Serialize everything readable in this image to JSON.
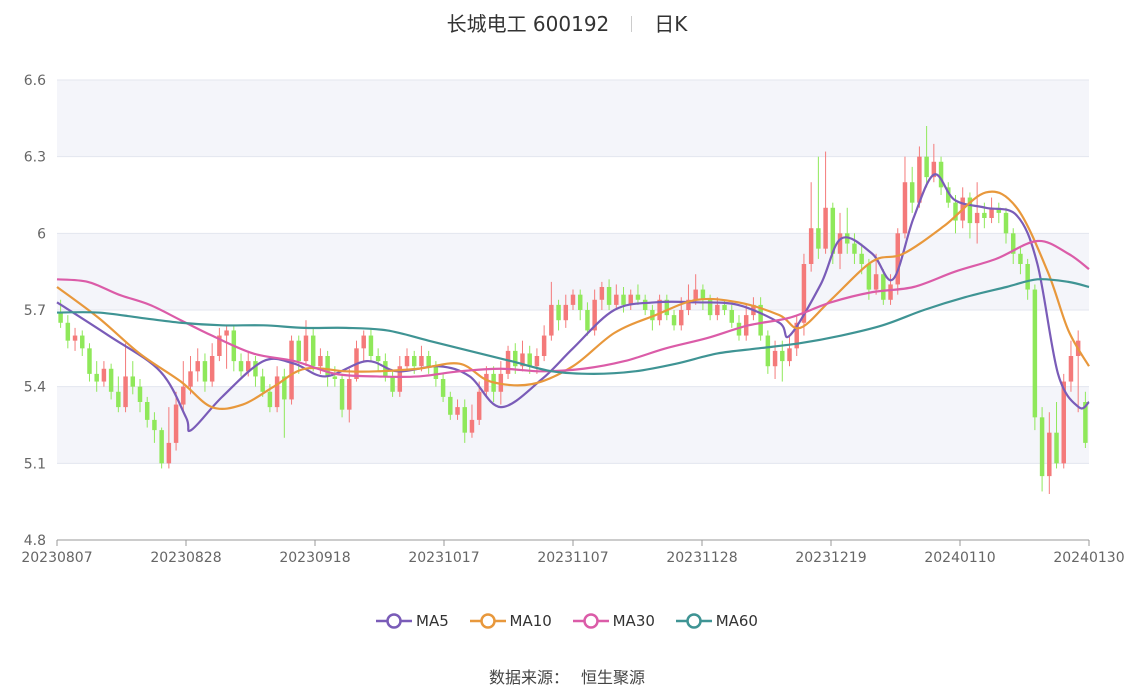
{
  "header": {
    "name": "长城电工 600192",
    "period": "日K"
  },
  "source": {
    "label": "数据来源：",
    "value": "恒生聚源"
  },
  "colors": {
    "up": "#f47a7a",
    "down": "#8fe85a",
    "ma5": "#7a5cb8",
    "ma10": "#e8983c",
    "ma30": "#db5ca8",
    "ma60": "#3f9494",
    "band": "#f4f5fa",
    "grid": "#e3e6ef"
  },
  "chart_data": {
    "type": "candlestick",
    "x_ticks": [
      "20230807",
      "20230828",
      "20230918",
      "20231017",
      "20231107",
      "20231128",
      "20231219",
      "20240110",
      "20240130"
    ],
    "y_ticks": [
      "4.8",
      "5.1",
      "5.4",
      "5.7",
      "6",
      "6.3",
      "6.6"
    ],
    "ylim": [
      4.8,
      6.6
    ],
    "legend": [
      "MA5",
      "MA10",
      "MA30",
      "MA60"
    ],
    "legend_position": "bottom",
    "candles": [
      [
        5.69,
        5.65,
        5.74,
        5.63
      ],
      [
        5.65,
        5.58,
        5.68,
        5.55
      ],
      [
        5.58,
        5.6,
        5.63,
        5.54
      ],
      [
        5.6,
        5.55,
        5.62,
        5.52
      ],
      [
        5.55,
        5.45,
        5.57,
        5.42
      ],
      [
        5.45,
        5.42,
        5.5,
        5.38
      ],
      [
        5.42,
        5.47,
        5.5,
        5.4
      ],
      [
        5.47,
        5.38,
        5.49,
        5.35
      ],
      [
        5.38,
        5.32,
        5.44,
        5.3
      ],
      [
        5.32,
        5.44,
        5.57,
        5.3
      ],
      [
        5.44,
        5.4,
        5.5,
        5.37
      ],
      [
        5.4,
        5.34,
        5.43,
        5.3
      ],
      [
        5.34,
        5.27,
        5.36,
        5.24
      ],
      [
        5.27,
        5.23,
        5.3,
        5.18
      ],
      [
        5.23,
        5.1,
        5.24,
        5.08
      ],
      [
        5.1,
        5.18,
        5.32,
        5.08
      ],
      [
        5.18,
        5.33,
        5.38,
        5.15
      ],
      [
        5.33,
        5.4,
        5.5,
        5.3
      ],
      [
        5.4,
        5.46,
        5.52,
        5.37
      ],
      [
        5.46,
        5.5,
        5.55,
        5.42
      ],
      [
        5.5,
        5.42,
        5.53,
        5.38
      ],
      [
        5.42,
        5.52,
        5.57,
        5.4
      ],
      [
        5.52,
        5.6,
        5.63,
        5.5
      ],
      [
        5.6,
        5.62,
        5.64,
        5.47
      ],
      [
        5.62,
        5.5,
        5.64,
        5.46
      ],
      [
        5.5,
        5.46,
        5.53,
        5.44
      ],
      [
        5.46,
        5.5,
        5.54,
        5.44
      ],
      [
        5.5,
        5.44,
        5.52,
        5.4
      ],
      [
        5.44,
        5.38,
        5.47,
        5.36
      ],
      [
        5.38,
        5.32,
        5.41,
        5.3
      ],
      [
        5.32,
        5.44,
        5.48,
        5.3
      ],
      [
        5.44,
        5.35,
        5.47,
        5.2
      ],
      [
        5.35,
        5.58,
        5.6,
        5.33
      ],
      [
        5.58,
        5.5,
        5.6,
        5.45
      ],
      [
        5.5,
        5.6,
        5.66,
        5.48
      ],
      [
        5.6,
        5.48,
        5.63,
        5.46
      ],
      [
        5.48,
        5.52,
        5.55,
        5.45
      ],
      [
        5.52,
        5.44,
        5.54,
        5.4
      ],
      [
        5.44,
        5.43,
        5.48,
        5.4
      ],
      [
        5.43,
        5.31,
        5.45,
        5.28
      ],
      [
        5.31,
        5.43,
        5.47,
        5.26
      ],
      [
        5.43,
        5.55,
        5.58,
        5.42
      ],
      [
        5.55,
        5.6,
        5.62,
        5.5
      ],
      [
        5.6,
        5.52,
        5.63,
        5.5
      ],
      [
        5.52,
        5.5,
        5.55,
        5.46
      ],
      [
        5.5,
        5.44,
        5.53,
        5.42
      ],
      [
        5.44,
        5.38,
        5.46,
        5.36
      ],
      [
        5.38,
        5.48,
        5.52,
        5.36
      ],
      [
        5.48,
        5.52,
        5.55,
        5.46
      ],
      [
        5.52,
        5.48,
        5.54,
        5.45
      ],
      [
        5.48,
        5.52,
        5.56,
        5.46
      ],
      [
        5.52,
        5.48,
        5.54,
        5.45
      ],
      [
        5.48,
        5.43,
        5.5,
        5.4
      ],
      [
        5.43,
        5.36,
        5.45,
        5.34
      ],
      [
        5.36,
        5.29,
        5.38,
        5.27
      ],
      [
        5.29,
        5.32,
        5.35,
        5.27
      ],
      [
        5.32,
        5.22,
        5.35,
        5.18
      ],
      [
        5.22,
        5.27,
        5.33,
        5.2
      ],
      [
        5.27,
        5.38,
        5.42,
        5.25
      ],
      [
        5.38,
        5.45,
        5.48,
        5.36
      ],
      [
        5.45,
        5.38,
        5.48,
        5.34
      ],
      [
        5.38,
        5.45,
        5.5,
        5.33
      ],
      [
        5.45,
        5.54,
        5.56,
        5.43
      ],
      [
        5.54,
        5.48,
        5.57,
        5.45
      ],
      [
        5.48,
        5.53,
        5.58,
        5.46
      ],
      [
        5.53,
        5.48,
        5.56,
        5.45
      ],
      [
        5.48,
        5.52,
        5.55,
        5.45
      ],
      [
        5.52,
        5.6,
        5.64,
        5.5
      ],
      [
        5.6,
        5.72,
        5.81,
        5.58
      ],
      [
        5.72,
        5.66,
        5.74,
        5.62
      ],
      [
        5.66,
        5.72,
        5.76,
        5.63
      ],
      [
        5.72,
        5.76,
        5.78,
        5.7
      ],
      [
        5.76,
        5.7,
        5.78,
        5.66
      ],
      [
        5.7,
        5.62,
        5.73,
        5.6
      ],
      [
        5.62,
        5.74,
        5.78,
        5.6
      ],
      [
        5.74,
        5.79,
        5.81,
        5.7
      ],
      [
        5.79,
        5.72,
        5.82,
        5.7
      ],
      [
        5.72,
        5.76,
        5.8,
        5.7
      ],
      [
        5.76,
        5.72,
        5.79,
        5.69
      ],
      [
        5.72,
        5.76,
        5.78,
        5.7
      ],
      [
        5.76,
        5.74,
        5.8,
        5.72
      ],
      [
        5.74,
        5.7,
        5.76,
        5.68
      ],
      [
        5.7,
        5.66,
        5.72,
        5.62
      ],
      [
        5.66,
        5.74,
        5.76,
        5.64
      ],
      [
        5.74,
        5.68,
        5.76,
        5.66
      ],
      [
        5.68,
        5.64,
        5.7,
        5.62
      ],
      [
        5.64,
        5.7,
        5.75,
        5.62
      ],
      [
        5.7,
        5.74,
        5.8,
        5.68
      ],
      [
        5.74,
        5.78,
        5.84,
        5.72
      ],
      [
        5.78,
        5.74,
        5.8,
        5.7
      ],
      [
        5.74,
        5.68,
        5.76,
        5.66
      ],
      [
        5.68,
        5.72,
        5.75,
        5.66
      ],
      [
        5.72,
        5.7,
        5.74,
        5.68
      ],
      [
        5.7,
        5.65,
        5.72,
        5.63
      ],
      [
        5.65,
        5.6,
        5.68,
        5.58
      ],
      [
        5.6,
        5.68,
        5.72,
        5.58
      ],
      [
        5.68,
        5.72,
        5.75,
        5.66
      ],
      [
        5.72,
        5.6,
        5.75,
        5.58
      ],
      [
        5.6,
        5.48,
        5.62,
        5.45
      ],
      [
        5.48,
        5.54,
        5.58,
        5.43
      ],
      [
        5.54,
        5.5,
        5.58,
        5.42
      ],
      [
        5.5,
        5.55,
        5.6,
        5.48
      ],
      [
        5.55,
        5.65,
        5.68,
        5.52
      ],
      [
        5.65,
        5.88,
        5.92,
        5.6
      ],
      [
        5.88,
        6.02,
        6.2,
        5.85
      ],
      [
        6.02,
        5.94,
        6.3,
        5.9
      ],
      [
        5.94,
        6.1,
        6.32,
        5.92
      ],
      [
        6.1,
        5.92,
        6.12,
        5.88
      ],
      [
        5.92,
        6.0,
        6.08,
        5.86
      ],
      [
        6.0,
        5.96,
        6.1,
        5.92
      ],
      [
        5.96,
        5.92,
        6.0,
        5.88
      ],
      [
        5.92,
        5.88,
        5.96,
        5.84
      ],
      [
        5.88,
        5.78,
        5.9,
        5.74
      ],
      [
        5.78,
        5.84,
        5.92,
        5.76
      ],
      [
        5.84,
        5.74,
        5.86,
        5.72
      ],
      [
        5.74,
        5.8,
        5.84,
        5.72
      ],
      [
        5.8,
        6.0,
        6.02,
        5.76
      ],
      [
        6.0,
        6.2,
        6.3,
        5.98
      ],
      [
        6.2,
        6.12,
        6.26,
        6.08
      ],
      [
        6.12,
        6.3,
        6.34,
        6.1
      ],
      [
        6.3,
        6.22,
        6.42,
        6.18
      ],
      [
        6.22,
        6.28,
        6.35,
        6.2
      ],
      [
        6.28,
        6.18,
        6.3,
        6.15
      ],
      [
        6.18,
        6.12,
        6.2,
        6.1
      ],
      [
        6.12,
        6.05,
        6.15,
        6.0
      ],
      [
        6.05,
        6.14,
        6.18,
        6.02
      ],
      [
        6.14,
        6.04,
        6.16,
        5.98
      ],
      [
        6.04,
        6.08,
        6.2,
        5.96
      ],
      [
        6.08,
        6.06,
        6.12,
        6.02
      ],
      [
        6.06,
        6.1,
        6.14,
        6.04
      ],
      [
        6.1,
        6.08,
        6.12,
        6.04
      ],
      [
        6.08,
        6.0,
        6.1,
        5.96
      ],
      [
        6.0,
        5.92,
        6.02,
        5.88
      ],
      [
        5.92,
        5.88,
        5.95,
        5.84
      ],
      [
        5.88,
        5.78,
        5.9,
        5.74
      ],
      [
        5.78,
        5.28,
        5.8,
        5.23
      ],
      [
        5.28,
        5.05,
        5.32,
        4.99
      ],
      [
        5.05,
        5.22,
        5.3,
        4.98
      ],
      [
        5.22,
        5.1,
        5.34,
        5.08
      ],
      [
        5.1,
        5.42,
        5.45,
        5.08
      ],
      [
        5.42,
        5.52,
        5.58,
        5.38
      ],
      [
        5.52,
        5.58,
        5.62,
        5.3
      ],
      [
        5.34,
        5.18,
        5.38,
        5.16
      ]
    ],
    "ma": {
      "MA5": [
        [
          0,
          5.73
        ],
        [
          0.05,
          5.6
        ],
        [
          0.1,
          5.46
        ],
        [
          0.125,
          5.28
        ],
        [
          0.13,
          5.23
        ],
        [
          0.16,
          5.36
        ],
        [
          0.2,
          5.5
        ],
        [
          0.23,
          5.49
        ],
        [
          0.26,
          5.44
        ],
        [
          0.3,
          5.5
        ],
        [
          0.33,
          5.46
        ],
        [
          0.37,
          5.48
        ],
        [
          0.4,
          5.44
        ],
        [
          0.43,
          5.32
        ],
        [
          0.47,
          5.43
        ],
        [
          0.5,
          5.55
        ],
        [
          0.54,
          5.7
        ],
        [
          0.58,
          5.73
        ],
        [
          0.62,
          5.73
        ],
        [
          0.66,
          5.72
        ],
        [
          0.7,
          5.65
        ],
        [
          0.71,
          5.6
        ],
        [
          0.74,
          5.8
        ],
        [
          0.76,
          5.98
        ],
        [
          0.79,
          5.92
        ],
        [
          0.81,
          5.82
        ],
        [
          0.83,
          6.06
        ],
        [
          0.85,
          6.23
        ],
        [
          0.87,
          6.13
        ],
        [
          0.9,
          6.1
        ],
        [
          0.93,
          6.07
        ],
        [
          0.95,
          5.88
        ],
        [
          0.97,
          5.45
        ],
        [
          0.99,
          5.32
        ],
        [
          1.0,
          5.34
        ]
      ],
      "MA10": [
        [
          0,
          5.79
        ],
        [
          0.04,
          5.67
        ],
        [
          0.08,
          5.53
        ],
        [
          0.12,
          5.42
        ],
        [
          0.15,
          5.32
        ],
        [
          0.18,
          5.33
        ],
        [
          0.21,
          5.4
        ],
        [
          0.24,
          5.47
        ],
        [
          0.28,
          5.46
        ],
        [
          0.31,
          5.46
        ],
        [
          0.35,
          5.47
        ],
        [
          0.39,
          5.49
        ],
        [
          0.42,
          5.42
        ],
        [
          0.46,
          5.41
        ],
        [
          0.5,
          5.48
        ],
        [
          0.54,
          5.61
        ],
        [
          0.58,
          5.68
        ],
        [
          0.62,
          5.74
        ],
        [
          0.66,
          5.73
        ],
        [
          0.7,
          5.68
        ],
        [
          0.72,
          5.63
        ],
        [
          0.75,
          5.74
        ],
        [
          0.79,
          5.89
        ],
        [
          0.82,
          5.92
        ],
        [
          0.86,
          6.03
        ],
        [
          0.9,
          6.16
        ],
        [
          0.93,
          6.1
        ],
        [
          0.96,
          5.85
        ],
        [
          0.98,
          5.62
        ],
        [
          1.0,
          5.48
        ]
      ],
      "MA30": [
        [
          0,
          5.82
        ],
        [
          0.03,
          5.81
        ],
        [
          0.06,
          5.76
        ],
        [
          0.09,
          5.72
        ],
        [
          0.12,
          5.66
        ],
        [
          0.15,
          5.6
        ],
        [
          0.19,
          5.53
        ],
        [
          0.23,
          5.5
        ],
        [
          0.27,
          5.45
        ],
        [
          0.31,
          5.44
        ],
        [
          0.35,
          5.44
        ],
        [
          0.39,
          5.46
        ],
        [
          0.43,
          5.47
        ],
        [
          0.47,
          5.46
        ],
        [
          0.51,
          5.47
        ],
        [
          0.55,
          5.5
        ],
        [
          0.59,
          5.55
        ],
        [
          0.63,
          5.59
        ],
        [
          0.67,
          5.64
        ],
        [
          0.71,
          5.67
        ],
        [
          0.75,
          5.73
        ],
        [
          0.79,
          5.77
        ],
        [
          0.83,
          5.79
        ],
        [
          0.87,
          5.85
        ],
        [
          0.91,
          5.9
        ],
        [
          0.95,
          5.97
        ],
        [
          0.98,
          5.92
        ],
        [
          1.0,
          5.86
        ]
      ],
      "MA60": [
        [
          0,
          5.69
        ],
        [
          0.04,
          5.69
        ],
        [
          0.08,
          5.67
        ],
        [
          0.12,
          5.65
        ],
        [
          0.16,
          5.64
        ],
        [
          0.2,
          5.64
        ],
        [
          0.24,
          5.63
        ],
        [
          0.28,
          5.63
        ],
        [
          0.32,
          5.62
        ],
        [
          0.36,
          5.58
        ],
        [
          0.4,
          5.54
        ],
        [
          0.44,
          5.5
        ],
        [
          0.48,
          5.46
        ],
        [
          0.52,
          5.45
        ],
        [
          0.56,
          5.46
        ],
        [
          0.6,
          5.49
        ],
        [
          0.64,
          5.53
        ],
        [
          0.68,
          5.55
        ],
        [
          0.72,
          5.57
        ],
        [
          0.76,
          5.6
        ],
        [
          0.8,
          5.64
        ],
        [
          0.84,
          5.7
        ],
        [
          0.88,
          5.75
        ],
        [
          0.92,
          5.79
        ],
        [
          0.95,
          5.82
        ],
        [
          0.98,
          5.81
        ],
        [
          1.0,
          5.79
        ]
      ]
    }
  }
}
